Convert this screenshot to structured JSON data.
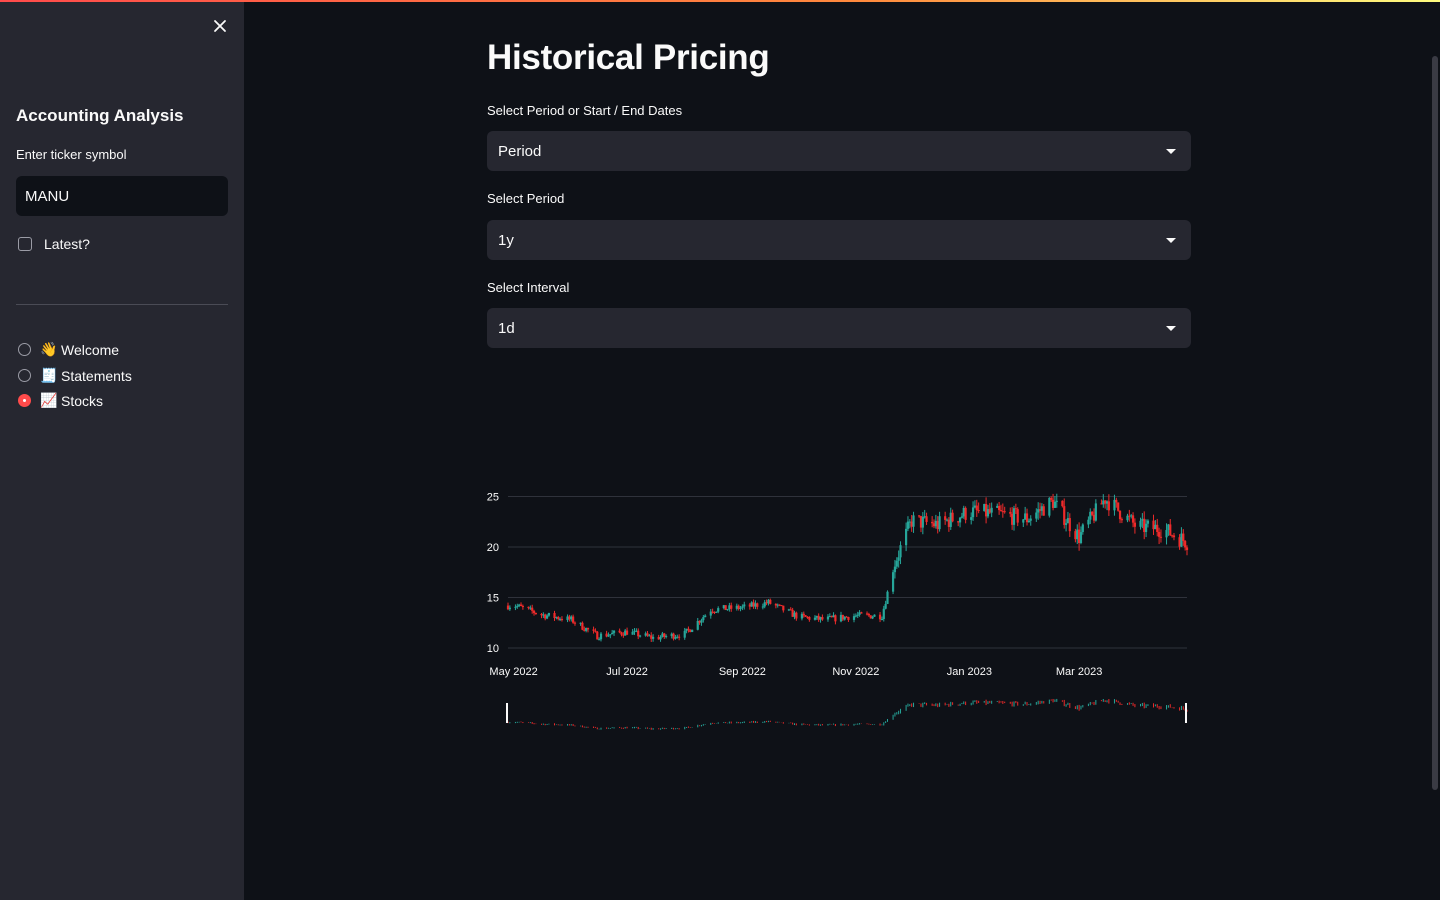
{
  "sidebar": {
    "title": "Accounting Analysis",
    "ticker_label": "Enter ticker symbol",
    "ticker_value": "MANU",
    "latest_label": "Latest?",
    "nav": [
      {
        "emoji": "👋",
        "label": "Welcome",
        "selected": false
      },
      {
        "emoji": "🧾",
        "label": "Statements",
        "selected": false
      },
      {
        "emoji": "📈",
        "label": "Stocks",
        "selected": true
      }
    ]
  },
  "main": {
    "title": "Historical Pricing",
    "period_mode_label": "Select Period or Start / End Dates",
    "period_mode_value": "Period",
    "period_label": "Select Period",
    "period_value": "1y",
    "interval_label": "Select Interval",
    "interval_value": "1d"
  },
  "colors": {
    "accent": "#ff4b4b",
    "up": "#26a69a",
    "down": "#ef2a2a",
    "background": "#0e1117",
    "sidebar": "#262730"
  },
  "chart_data": {
    "type": "candlestick",
    "x_ticks": [
      "May 2022",
      "Jul 2022",
      "Sep 2022",
      "Nov 2022",
      "Jan 2023",
      "Mar 2023"
    ],
    "y_ticks": [
      10,
      15,
      20,
      25
    ],
    "ylim": [
      10,
      27.5
    ],
    "range_slider": true,
    "grid": true,
    "series": [
      {
        "date": "2022-05-02",
        "close": 14.2
      },
      {
        "date": "2022-05-16",
        "close": 13.3
      },
      {
        "date": "2022-06-01",
        "close": 12.8
      },
      {
        "date": "2022-06-15",
        "close": 11.2
      },
      {
        "date": "2022-07-01",
        "close": 11.6
      },
      {
        "date": "2022-07-15",
        "close": 11.0
      },
      {
        "date": "2022-08-01",
        "close": 11.4
      },
      {
        "date": "2022-08-15",
        "close": 13.8
      },
      {
        "date": "2022-09-01",
        "close": 14.0
      },
      {
        "date": "2022-09-15",
        "close": 14.5
      },
      {
        "date": "2022-10-01",
        "close": 13.1
      },
      {
        "date": "2022-10-15",
        "close": 12.8
      },
      {
        "date": "2022-11-01",
        "close": 13.2
      },
      {
        "date": "2022-11-15",
        "close": 13.2
      },
      {
        "date": "2022-11-22",
        "close": 18.5
      },
      {
        "date": "2022-12-01",
        "close": 22.6
      },
      {
        "date": "2022-12-15",
        "close": 22.2
      },
      {
        "date": "2023-01-01",
        "close": 23.5
      },
      {
        "date": "2023-01-15",
        "close": 23.3
      },
      {
        "date": "2023-02-01",
        "close": 22.8
      },
      {
        "date": "2023-02-15",
        "close": 24.5
      },
      {
        "date": "2023-03-01",
        "close": 21.0
      },
      {
        "date": "2023-03-15",
        "close": 24.8
      },
      {
        "date": "2023-04-01",
        "close": 22.0
      },
      {
        "date": "2023-04-15",
        "close": 21.8
      },
      {
        "date": "2023-04-28",
        "close": 20.5
      }
    ]
  }
}
